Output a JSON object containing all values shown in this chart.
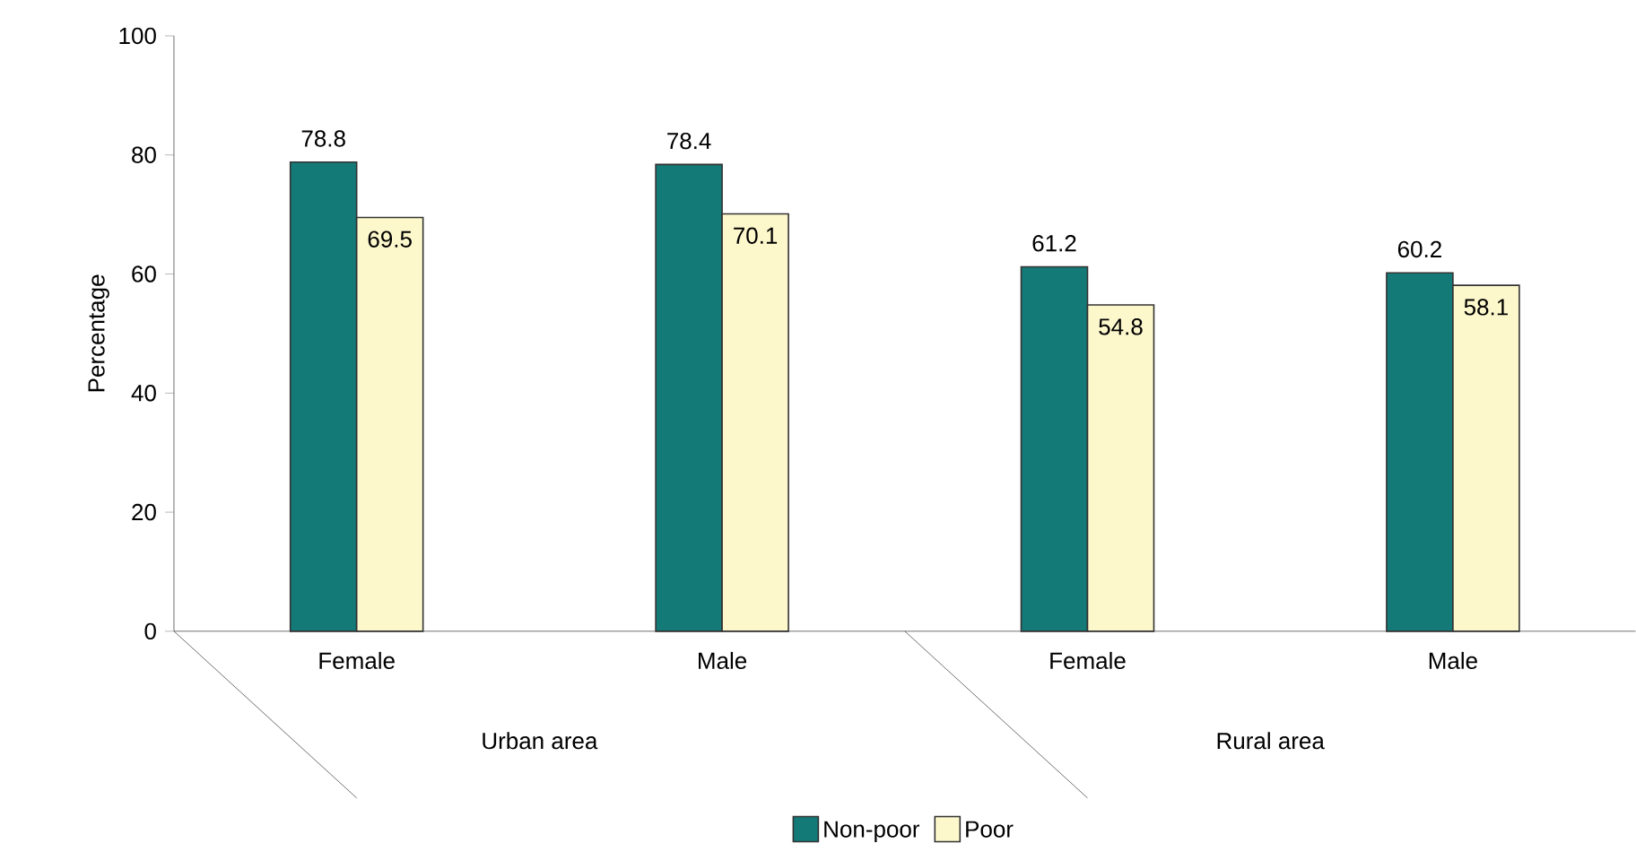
{
  "chart_data": {
    "type": "bar",
    "ylabel": "Percentage",
    "categories": [
      "Female",
      "Male",
      "Female",
      "Male"
    ],
    "series": [
      {
        "name": "Non-poor",
        "color": "#147a78",
        "values": [
          78.8,
          78.4,
          61.2,
          60.2
        ]
      },
      {
        "name": "Poor",
        "color": "#fdf8cc",
        "values": [
          69.5,
          70.1,
          54.8,
          58.1
        ]
      }
    ],
    "annotations": [
      "Urban area",
      "Rural area"
    ],
    "ylim": [
      0,
      100
    ],
    "yticks": [
      0,
      20,
      40,
      60,
      80,
      100
    ],
    "data_labels": true,
    "legend": "bottom",
    "grid": false
  }
}
